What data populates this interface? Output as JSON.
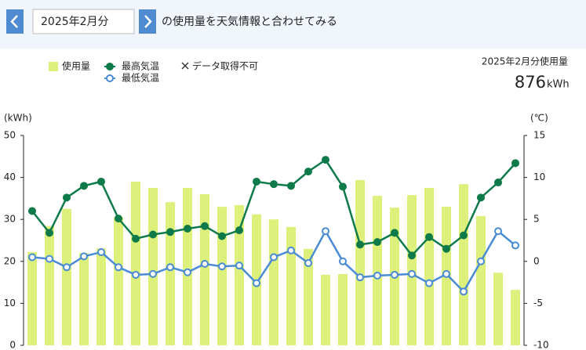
{
  "header": {
    "month": "2025年2月分",
    "caption": "の使用量を天気情報と合わせてみる"
  },
  "summary": {
    "label": "2025年2月分使用量",
    "value": 876,
    "unit": "kWh"
  },
  "chart_data": {
    "type": "bar_line",
    "y_label": "(kWh)",
    "y2_label": "(℃)",
    "missing_label": "データ取得不可",
    "ylim": [
      0,
      50
    ],
    "yticks": [
      0,
      10,
      20,
      30,
      40,
      50
    ],
    "y2lim": [
      -10,
      15
    ],
    "y2ticks": [
      -10,
      -5,
      0,
      5,
      10,
      15
    ],
    "series": [
      {
        "name": "使用量",
        "type": "bar",
        "color": "#ddf07c",
        "values": [
          22.2,
          28.4,
          32.5,
          22,
          23.1,
          30.6,
          39,
          37.5,
          34.1,
          37.5,
          36,
          33,
          33.4,
          31.2,
          30,
          28.2,
          23,
          16.8,
          17,
          39.4,
          35.6,
          32.8,
          35.8,
          37.5,
          33,
          38.4,
          30.8,
          17.3,
          13.2
        ]
      },
      {
        "name": "最高気温",
        "type": "line",
        "axis": "y2",
        "color": "#0e7a4a",
        "marker_fill": "#0e7a4a",
        "values": [
          6.0,
          3.4,
          7.6,
          9.0,
          9.5,
          5.1,
          2.7,
          3.2,
          3.5,
          3.9,
          4.2,
          3.0,
          3.7,
          9.5,
          9.2,
          9.0,
          10.7,
          12.1,
          8.9,
          2.0,
          2.3,
          3.4,
          0.7,
          2.9,
          1.5,
          3.1,
          7.6,
          9.4,
          11.7
        ]
      },
      {
        "name": "最低気温",
        "type": "line",
        "axis": "y2",
        "color": "#4a8bd6",
        "marker_fill": "#ffffff",
        "values": [
          0.5,
          0.3,
          -0.7,
          0.6,
          1.1,
          -0.7,
          -1.6,
          -1.5,
          -0.7,
          -1.3,
          -0.3,
          -0.6,
          -0.5,
          -2.6,
          0.5,
          1.3,
          -0.2,
          3.6,
          0.0,
          -1.9,
          -1.7,
          -1.6,
          -1.5,
          -2.6,
          -1.5,
          -3.6,
          0.0,
          3.6,
          1.9
        ]
      }
    ]
  }
}
